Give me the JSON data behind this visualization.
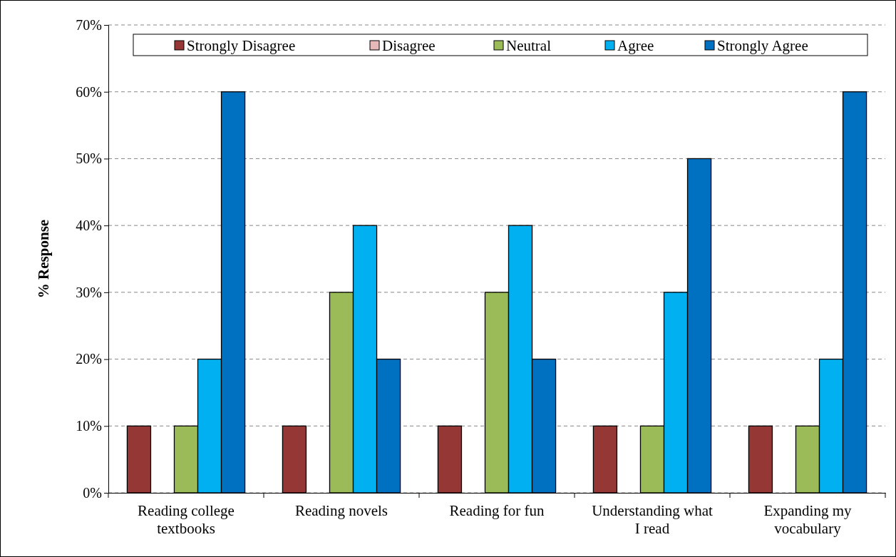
{
  "chart_data": {
    "type": "bar",
    "ylabel": "% Response",
    "categories": [
      "Reading college textbooks",
      "Reading novels",
      "Reading for fun",
      "Understanding what I read",
      "Expanding my vocabulary"
    ],
    "series": [
      {
        "name": "Strongly Disagree",
        "color": "#953735",
        "values": [
          10,
          10,
          10,
          10,
          10
        ]
      },
      {
        "name": "Disagree",
        "color": "#e6b9b8",
        "values": [
          0,
          0,
          0,
          0,
          0
        ]
      },
      {
        "name": "Neutral",
        "color": "#9bbb59",
        "values": [
          10,
          30,
          30,
          10,
          10
        ]
      },
      {
        "name": "Agree",
        "color": "#00b0f0",
        "values": [
          20,
          40,
          40,
          30,
          20
        ]
      },
      {
        "name": "Strongly Agree",
        "color": "#0070c0",
        "values": [
          60,
          20,
          20,
          50,
          60
        ]
      }
    ],
    "ylim": [
      0,
      70
    ],
    "yticks": [
      {
        "value": 0,
        "label": "0%"
      },
      {
        "value": 10,
        "label": "10%"
      },
      {
        "value": 20,
        "label": "20%"
      },
      {
        "value": 30,
        "label": "30%"
      },
      {
        "value": 40,
        "label": "40%"
      },
      {
        "value": 50,
        "label": "50%"
      },
      {
        "value": 60,
        "label": "60%"
      },
      {
        "value": 70,
        "label": "70%"
      }
    ],
    "grid": "y",
    "legend": "top"
  }
}
